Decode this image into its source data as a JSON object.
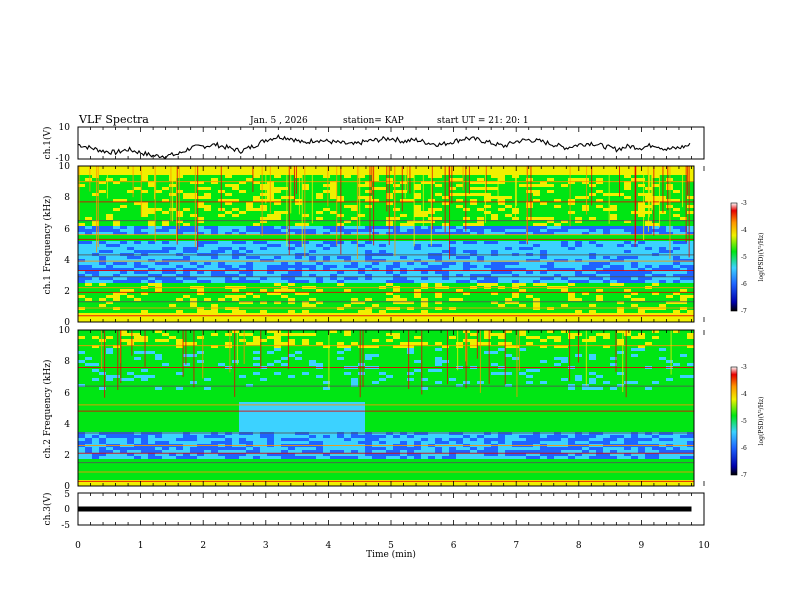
{
  "header": {
    "title": "VLF Spectra",
    "date": "Jan. 5 , 2026",
    "station": "station= KAP",
    "start": "start  UT  =   21: 20: 1"
  },
  "chart_data": [
    {
      "type": "line",
      "name": "ch1-waveform",
      "ylabel": "ch.1(V)",
      "ylim": [
        -10,
        10
      ],
      "ytick_labels": [
        "10",
        "-10"
      ],
      "xlim": [
        0,
        10
      ],
      "x": [
        0.0,
        0.2,
        0.4,
        0.6,
        0.8,
        1.0,
        1.2,
        1.4,
        1.6,
        1.8,
        2.0,
        2.2,
        2.4,
        2.6,
        2.8,
        3.0,
        3.2,
        3.4,
        3.6,
        3.8,
        4.0,
        4.2,
        4.4,
        4.6,
        4.8,
        5.0,
        5.2,
        5.4,
        5.6,
        5.8,
        6.0,
        6.2,
        6.4,
        6.6,
        6.8,
        7.0,
        7.2,
        7.4,
        7.6,
        7.8,
        8.0,
        8.2,
        8.4,
        8.6,
        8.8,
        9.0,
        9.2,
        9.4,
        9.6,
        9.8
      ],
      "y": [
        -1,
        -3,
        -5,
        -6,
        -4,
        -6,
        -8,
        -8,
        -7,
        -3,
        -2,
        -1,
        -3,
        -5,
        -2,
        2,
        4,
        3,
        0,
        2,
        1,
        0,
        -1,
        1,
        2,
        3,
        1,
        2,
        0,
        -1,
        1,
        3,
        2,
        0,
        -2,
        1,
        2,
        1,
        -1,
        -3,
        -1,
        0,
        -2,
        -4,
        -2,
        -3,
        -1,
        -4,
        -3,
        -1
      ]
    },
    {
      "type": "heatmap",
      "name": "ch1-spectrogram",
      "ylabel": "ch.1 Frequency (kHz)",
      "ylim": [
        0,
        10
      ],
      "ytick_labels": [
        "0",
        "2",
        "4",
        "6",
        "8",
        "10"
      ],
      "xlim": [
        0,
        10
      ],
      "color_scale": {
        "label": "log(PSD)(V²/Hz)",
        "range": [
          -7,
          -3
        ],
        "tick_labels": [
          "-3",
          "-4",
          "-5",
          "-6",
          "-7"
        ]
      }
    },
    {
      "type": "heatmap",
      "name": "ch2-spectrogram",
      "ylabel": "ch.2 Frequency (kHz)",
      "ylim": [
        0,
        10
      ],
      "ytick_labels": [
        "0",
        "2",
        "4",
        "6",
        "8",
        "10"
      ],
      "xlim": [
        0,
        10
      ],
      "color_scale": {
        "label": "log(PSD)(V²/Hz)",
        "range": [
          -7,
          -3
        ],
        "tick_labels": [
          "-3",
          "-4",
          "-5",
          "-6",
          "-7"
        ]
      }
    },
    {
      "type": "line",
      "name": "ch3-waveform",
      "ylabel": "ch.3(V)",
      "ylim": [
        -5,
        5
      ],
      "ytick_labels": [
        "5",
        "0",
        "-5"
      ],
      "xlim": [
        0,
        10
      ],
      "x": [
        0,
        9.8
      ],
      "y": [
        0,
        0
      ]
    }
  ],
  "xaxis": {
    "label": "Time  (min)",
    "tick_labels": [
      "0",
      "1",
      "2",
      "3",
      "4",
      "5",
      "6",
      "7",
      "8",
      "9",
      "10"
    ]
  },
  "colors": {
    "deep": "#0000aa",
    "blue": "#1e64ff",
    "cyan": "#3cd2ff",
    "green": "#00e614",
    "yellow": "#f0f000",
    "orange": "#ff9600",
    "red": "#e60000"
  }
}
